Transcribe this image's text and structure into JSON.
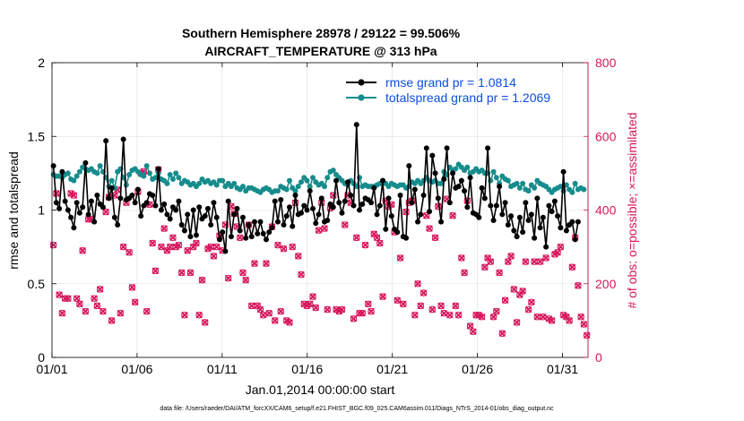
{
  "chart_data": {
    "type": "line",
    "title": "Southern Hemisphere 28978 / 29122 = 99.506%",
    "subtitle": "AIRCRAFT_TEMPERATURE @ 313 hPa",
    "xlabel": "Jan.01,2014 00:00:00 start",
    "ylabel": "rmse and totalspread",
    "y2label": "# of obs: o=possible; ×=assimilated",
    "footnote": "data file: /Users/raeder/DAI/ATM_forcXX/CAM6_setup/f.e21.FHIST_BGC.f09_025.CAM6assim.011/Diags_NTrS_2014-01/obs_diag_output.nc",
    "xlim": [
      1,
      32.5
    ],
    "ylim": [
      0,
      2
    ],
    "y2lim": [
      0,
      800
    ],
    "x_ticks": [
      1,
      6,
      11,
      16,
      21,
      26,
      31
    ],
    "x_tick_labels": [
      "01/01",
      "01/06",
      "01/11",
      "01/16",
      "01/21",
      "01/26",
      "01/31"
    ],
    "y_ticks": [
      0,
      0.5,
      1,
      1.5,
      2
    ],
    "y_tick_labels": [
      "0",
      "0.5",
      "1",
      "1.5",
      "2"
    ],
    "y2_ticks": [
      0,
      200,
      400,
      600,
      800
    ],
    "y2_tick_labels": [
      "0",
      "200",
      "400",
      "600",
      "800"
    ],
    "grid": true,
    "legend_placement": "top-right",
    "colors": {
      "rmse": "#000000",
      "spread": "#168c8c",
      "obs": "#d6175c",
      "legend_text": "#0a4fe0"
    },
    "series": [
      {
        "name": "rmse grand pr = 1.0814",
        "axis": "left",
        "values": [
          1.3,
          1.05,
          1.01,
          1.26,
          1.06,
          1.0,
          0.95,
          0.88,
          1.05,
          0.98,
          1.02,
          1.32,
          0.97,
          1.06,
          0.92,
          1.1,
          1.04,
          1.02,
          1.47,
          1.08,
          1.15,
          0.95,
          0.9,
          1.08,
          1.48,
          1.07,
          1.08,
          1.1,
          1.05,
          1.14,
          0.96,
          1.03,
          1.05,
          1.11,
          1.1,
          1.03,
          1.28,
          1.0,
          1.04,
          0.97,
          0.94,
          1.02,
          1.0,
          1.06,
          0.9,
          0.86,
          0.97,
          0.82,
          1.0,
          0.83,
          1.02,
          0.94,
          0.96,
          1.01,
          0.9,
          1.05,
          0.95,
          0.8,
          0.85,
          0.72,
          1.06,
          0.82,
          0.97,
          1.01,
          0.86,
          0.95,
          0.81,
          0.9,
          0.82,
          0.92,
          0.84,
          0.92,
          0.84,
          0.8,
          0.85,
          0.88,
          1.06,
          0.92,
          1.07,
          0.9,
          0.96,
          1.02,
          0.89,
          1.1,
          0.97,
          0.98,
          1.03,
          1.0,
          1.13,
          1.01,
          0.91,
          0.97,
          1.08,
          0.92,
          0.93,
          1.04,
          1.02,
          1.2,
          1.05,
          0.98,
          1.06,
          1.19,
          1.1,
          1.03,
          1.58,
          1.0,
          1.04,
          1.08,
          1.07,
          1.05,
          1.15,
          0.97,
          1.03,
          1.2,
          0.87,
          1.08,
          0.96,
          0.87,
          0.85,
          1.1,
          0.82,
          0.81,
          1.3,
          1.05,
          1.14,
          0.92,
          0.97,
          1.1,
          1.42,
          0.99,
          1.37,
          1.25,
          1.08,
          0.92,
          1.21,
          1.42,
          1.05,
          1.25,
          1.15,
          1.16,
          1.2,
          1.13,
          1.02,
          1.22,
          0.98,
          0.97,
          0.95,
          1.15,
          1.08,
          1.42,
          1.03,
          0.93,
          1.03,
          1.16,
          0.97,
          1.05,
          0.9,
          0.96,
          0.86,
          0.82,
          0.95,
          0.85,
          1.05,
          0.93,
          0.97,
          0.81,
          1.08,
          0.88,
          0.95,
          0.75,
          1.03,
          0.99,
          1.06,
          0.96,
          0.88,
          1.26,
          0.86,
          0.9,
          0.92,
          0.8,
          0.92
        ]
      },
      {
        "name": "totalspread grand pr = 1.2069",
        "axis": "left",
        "values": [
          1.24,
          1.23,
          1.23,
          1.22,
          1.24,
          1.25,
          1.21,
          1.2,
          1.23,
          1.26,
          1.29,
          1.28,
          1.27,
          1.28,
          1.26,
          1.25,
          1.3,
          1.26,
          1.22,
          1.16,
          1.2,
          1.15,
          1.26,
          1.28,
          1.22,
          1.17,
          1.24,
          1.27,
          1.28,
          1.26,
          1.24,
          1.23,
          1.3,
          1.25,
          1.21,
          1.22,
          1.25,
          1.21,
          1.2,
          1.18,
          1.24,
          1.21,
          1.25,
          1.22,
          1.18,
          1.2,
          1.19,
          1.17,
          1.18,
          1.16,
          1.18,
          1.21,
          1.19,
          1.2,
          1.18,
          1.19,
          1.17,
          1.2,
          1.2,
          1.16,
          1.18,
          1.16,
          1.18,
          1.15,
          1.14,
          1.16,
          1.13,
          1.15,
          1.15,
          1.14,
          1.13,
          1.12,
          1.14,
          1.15,
          1.14,
          1.12,
          1.13,
          1.13,
          1.16,
          1.15,
          1.14,
          1.2,
          1.15,
          1.13,
          1.16,
          1.19,
          1.22,
          1.2,
          1.16,
          1.22,
          1.19,
          1.17,
          1.18,
          1.16,
          1.22,
          1.26,
          1.27,
          1.24,
          1.22,
          1.2,
          1.18,
          1.17,
          1.2,
          1.18,
          1.16,
          1.22,
          1.16,
          1.17,
          1.16,
          1.16,
          1.16,
          1.17,
          1.18,
          1.2,
          1.18,
          1.16,
          1.18,
          1.17,
          1.16,
          1.17,
          1.17,
          1.15,
          1.16,
          1.19,
          1.18,
          1.2,
          1.18,
          1.2,
          1.22,
          1.2,
          1.19,
          1.2,
          1.18,
          1.18,
          1.26,
          1.24,
          1.29,
          1.27,
          1.28,
          1.31,
          1.29,
          1.27,
          1.29,
          1.25,
          1.26,
          1.28,
          1.26,
          1.27,
          1.25,
          1.25,
          1.2,
          1.26,
          1.22,
          1.18,
          1.23,
          1.21,
          1.2,
          1.16,
          1.17,
          1.18,
          1.15,
          1.18,
          1.14,
          1.13,
          1.17,
          1.15,
          1.2,
          1.18,
          1.17,
          1.16,
          1.14,
          1.12,
          1.14,
          1.15,
          1.16,
          1.13,
          1.17,
          1.14,
          1.12,
          1.18,
          1.14,
          1.15,
          1.14
        ]
      },
      {
        "name": "possible",
        "axis": "right",
        "values": [
          305,
          445,
          170,
          120,
          160,
          160,
          445,
          440,
          160,
          145,
          290,
          125,
          375,
          375,
          160,
          140,
          185,
          125,
          395,
          435,
          100,
          440,
          455,
          120,
          300,
          420,
          285,
          190,
          150,
          450,
          500,
          505,
          125,
          415,
          310,
          235,
          510,
          300,
          350,
          290,
          300,
          325,
          300,
          305,
          230,
          115,
          290,
          230,
          300,
          310,
          115,
          210,
          95,
          295,
          300,
          275,
          300,
          330,
          290,
          360,
          215,
          410,
          390,
          355,
          325,
          230,
          210,
          360,
          140,
          255,
          140,
          130,
          115,
          255,
          120,
          355,
          100,
          305,
          125,
          295,
          100,
          95,
          300,
          420,
          275,
          225,
          145,
          140,
          145,
          165,
          135,
          345,
          420,
          350,
          130,
          405,
          440,
          130,
          125,
          130,
          360,
          440,
          420,
          105,
          325,
          120,
          120,
          305,
          145,
          125,
          335,
          325,
          310,
          165,
          425,
          410,
          415,
          340,
          155,
          270,
          145,
          395,
          420,
          425,
          115,
          200,
          140,
          175,
          385,
          350,
          130,
          325,
          410,
          140,
          120,
          430,
          115,
          385,
          140,
          115,
          270,
          230,
          425,
          85,
          70,
          115,
          115,
          110,
          245,
          270,
          260,
          110,
          125,
          230,
          65,
          155,
          260,
          275,
          185,
          95,
          170,
          180,
          260,
          130,
          150,
          260,
          110,
          260,
          110,
          270,
          105,
          100,
          280,
          285,
          300,
          115,
          110,
          100,
          245,
          325,
          195,
          110,
          90,
          60
        ]
      },
      {
        "name": "assimilated",
        "axis": "right",
        "values": [
          305,
          445,
          170,
          120,
          160,
          160,
          445,
          440,
          160,
          145,
          290,
          125,
          375,
          375,
          160,
          140,
          185,
          125,
          395,
          435,
          100,
          440,
          455,
          120,
          300,
          420,
          285,
          190,
          150,
          450,
          500,
          505,
          125,
          415,
          310,
          235,
          510,
          300,
          350,
          290,
          300,
          325,
          300,
          305,
          230,
          115,
          290,
          230,
          300,
          310,
          115,
          210,
          95,
          295,
          300,
          275,
          300,
          330,
          290,
          360,
          215,
          410,
          390,
          355,
          325,
          230,
          210,
          360,
          140,
          255,
          140,
          130,
          115,
          255,
          120,
          355,
          100,
          305,
          125,
          295,
          100,
          95,
          300,
          420,
          275,
          225,
          145,
          140,
          145,
          165,
          135,
          345,
          420,
          350,
          130,
          405,
          440,
          130,
          125,
          130,
          360,
          440,
          420,
          105,
          325,
          120,
          120,
          305,
          145,
          125,
          335,
          325,
          310,
          165,
          425,
          410,
          415,
          340,
          155,
          270,
          145,
          395,
          420,
          425,
          115,
          200,
          140,
          175,
          385,
          350,
          130,
          325,
          410,
          140,
          120,
          430,
          115,
          385,
          140,
          115,
          270,
          230,
          425,
          85,
          70,
          115,
          115,
          110,
          245,
          270,
          260,
          110,
          125,
          230,
          65,
          155,
          260,
          275,
          185,
          95,
          170,
          180,
          260,
          130,
          150,
          260,
          110,
          260,
          110,
          270,
          105,
          100,
          280,
          285,
          300,
          115,
          110,
          100,
          245,
          325,
          195,
          110,
          90,
          60
        ]
      }
    ]
  }
}
